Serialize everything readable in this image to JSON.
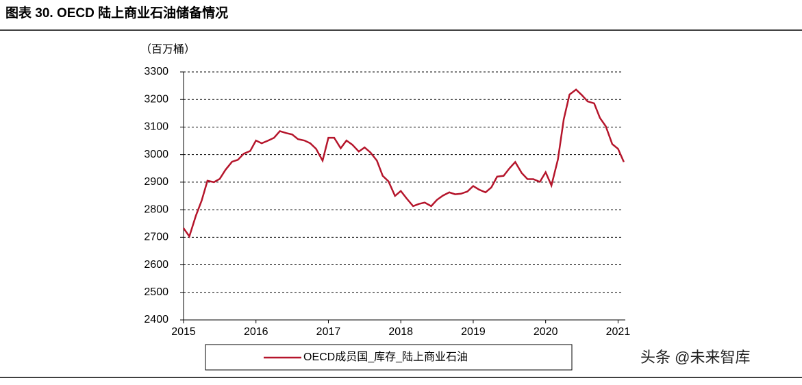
{
  "header": {
    "title": "图表 30. OECD 陆上商业石油储备情况"
  },
  "chart_data": {
    "type": "line",
    "y_unit": "（百万桶）",
    "x": [
      2015.0,
      2015.08,
      2015.17,
      2015.25,
      2015.33,
      2015.42,
      2015.5,
      2015.58,
      2015.67,
      2015.75,
      2015.83,
      2015.92,
      2016.0,
      2016.08,
      2016.17,
      2016.25,
      2016.33,
      2016.42,
      2016.5,
      2016.58,
      2016.67,
      2016.75,
      2016.83,
      2016.92,
      2017.0,
      2017.08,
      2017.17,
      2017.25,
      2017.33,
      2017.42,
      2017.5,
      2017.58,
      2017.67,
      2017.75,
      2017.83,
      2017.92,
      2018.0,
      2018.08,
      2018.17,
      2018.25,
      2018.33,
      2018.42,
      2018.5,
      2018.58,
      2018.67,
      2018.75,
      2018.83,
      2018.92,
      2019.0,
      2019.08,
      2019.17,
      2019.25,
      2019.33,
      2019.42,
      2019.5,
      2019.58,
      2019.67,
      2019.75,
      2019.83,
      2019.92,
      2020.0,
      2020.08,
      2020.17,
      2020.25,
      2020.33,
      2020.42,
      2020.5,
      2020.58,
      2020.67,
      2020.75,
      2020.83,
      2020.92,
      2021.0,
      2021.08
    ],
    "series": [
      {
        "name": "OECD成员国_库存_陆上商业石油",
        "color": "#b5152b",
        "values": [
          2733,
          2703,
          2778,
          2833,
          2905,
          2900,
          2912,
          2945,
          2974,
          2981,
          3003,
          3013,
          3051,
          3041,
          3051,
          3061,
          3085,
          3078,
          3073,
          3056,
          3051,
          3041,
          3021,
          2978,
          3061,
          3061,
          3023,
          3051,
          3036,
          3011,
          3026,
          3008,
          2978,
          2923,
          2903,
          2850,
          2868,
          2841,
          2813,
          2821,
          2826,
          2813,
          2836,
          2851,
          2863,
          2856,
          2858,
          2866,
          2886,
          2873,
          2863,
          2881,
          2920,
          2923,
          2950,
          2973,
          2933,
          2911,
          2911,
          2901,
          2936,
          2888,
          2983,
          3128,
          3218,
          3236,
          3216,
          3193,
          3186,
          3133,
          3103,
          3038,
          3021,
          2973
        ]
      }
    ],
    "xlim": [
      2015,
      2021.1
    ],
    "xticks": [
      2015,
      2016,
      2017,
      2018,
      2019,
      2020,
      2021
    ],
    "ylim": [
      2400,
      3300
    ],
    "yticks": [
      2400,
      2500,
      2600,
      2700,
      2800,
      2900,
      3000,
      3100,
      3200,
      3300
    ],
    "grid": true
  },
  "watermark": "头条 @未来智库"
}
